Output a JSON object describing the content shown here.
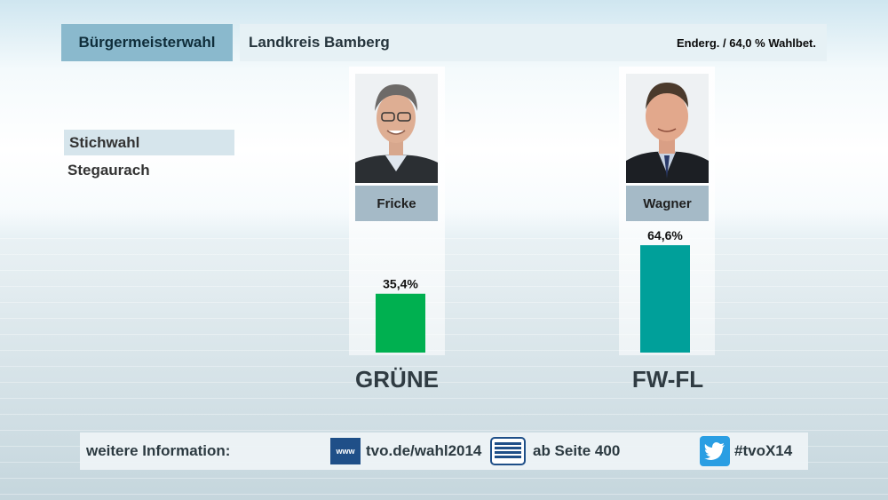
{
  "header": {
    "election": "Bürgermeisterwahl",
    "region": "Landkreis Bamberg",
    "status": "Enderg. / 64,0 % Wahlbet."
  },
  "round": "Stichwahl",
  "place": "Stegaurach",
  "candidates": [
    {
      "name": "Fricke",
      "party": "GRÜNE",
      "value_label": "35,4%",
      "color": "#00b050"
    },
    {
      "name": "Wagner",
      "party": "FW-FL",
      "value_label": "64,6%",
      "color": "#00a09a"
    }
  ],
  "chart_data": {
    "type": "bar",
    "categories": [
      "GRÜNE",
      "FW-FL"
    ],
    "values": [
      35.4,
      64.6
    ],
    "ylim": [
      0,
      70
    ]
  },
  "footer": {
    "label": "weitere Information:",
    "www_icon": "www",
    "web": "tvo.de/wahl2014",
    "teletext": "ab Seite 400",
    "twitter": "#tvoX14"
  }
}
